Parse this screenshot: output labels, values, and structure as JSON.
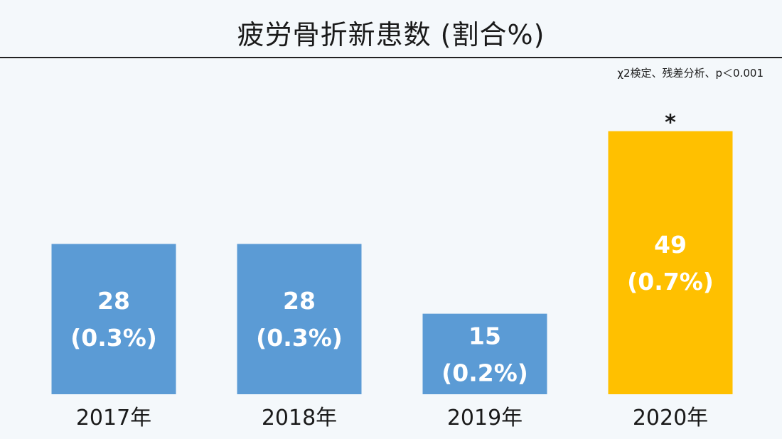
{
  "chart_data": {
    "type": "bar",
    "title": "疲労骨折新患数 (割合%)",
    "note": "χ2検定、残差分析、p＜0.001",
    "categories": [
      "2017年",
      "2018年",
      "2019年",
      "2020年"
    ],
    "values": [
      28,
      28,
      15,
      49
    ],
    "percent_labels": [
      "(0.3%)",
      "(0.3%)",
      "(0.2%)",
      "(0.7%)"
    ],
    "bar_colors": [
      "#5b9bd5",
      "#5b9bd5",
      "#5b9bd5",
      "#ffc000"
    ],
    "significance_markers": [
      "",
      "",
      "",
      "*"
    ],
    "xlabel": "",
    "ylabel": "",
    "ylim": [
      0,
      52
    ],
    "grid": false,
    "legend": "none"
  }
}
